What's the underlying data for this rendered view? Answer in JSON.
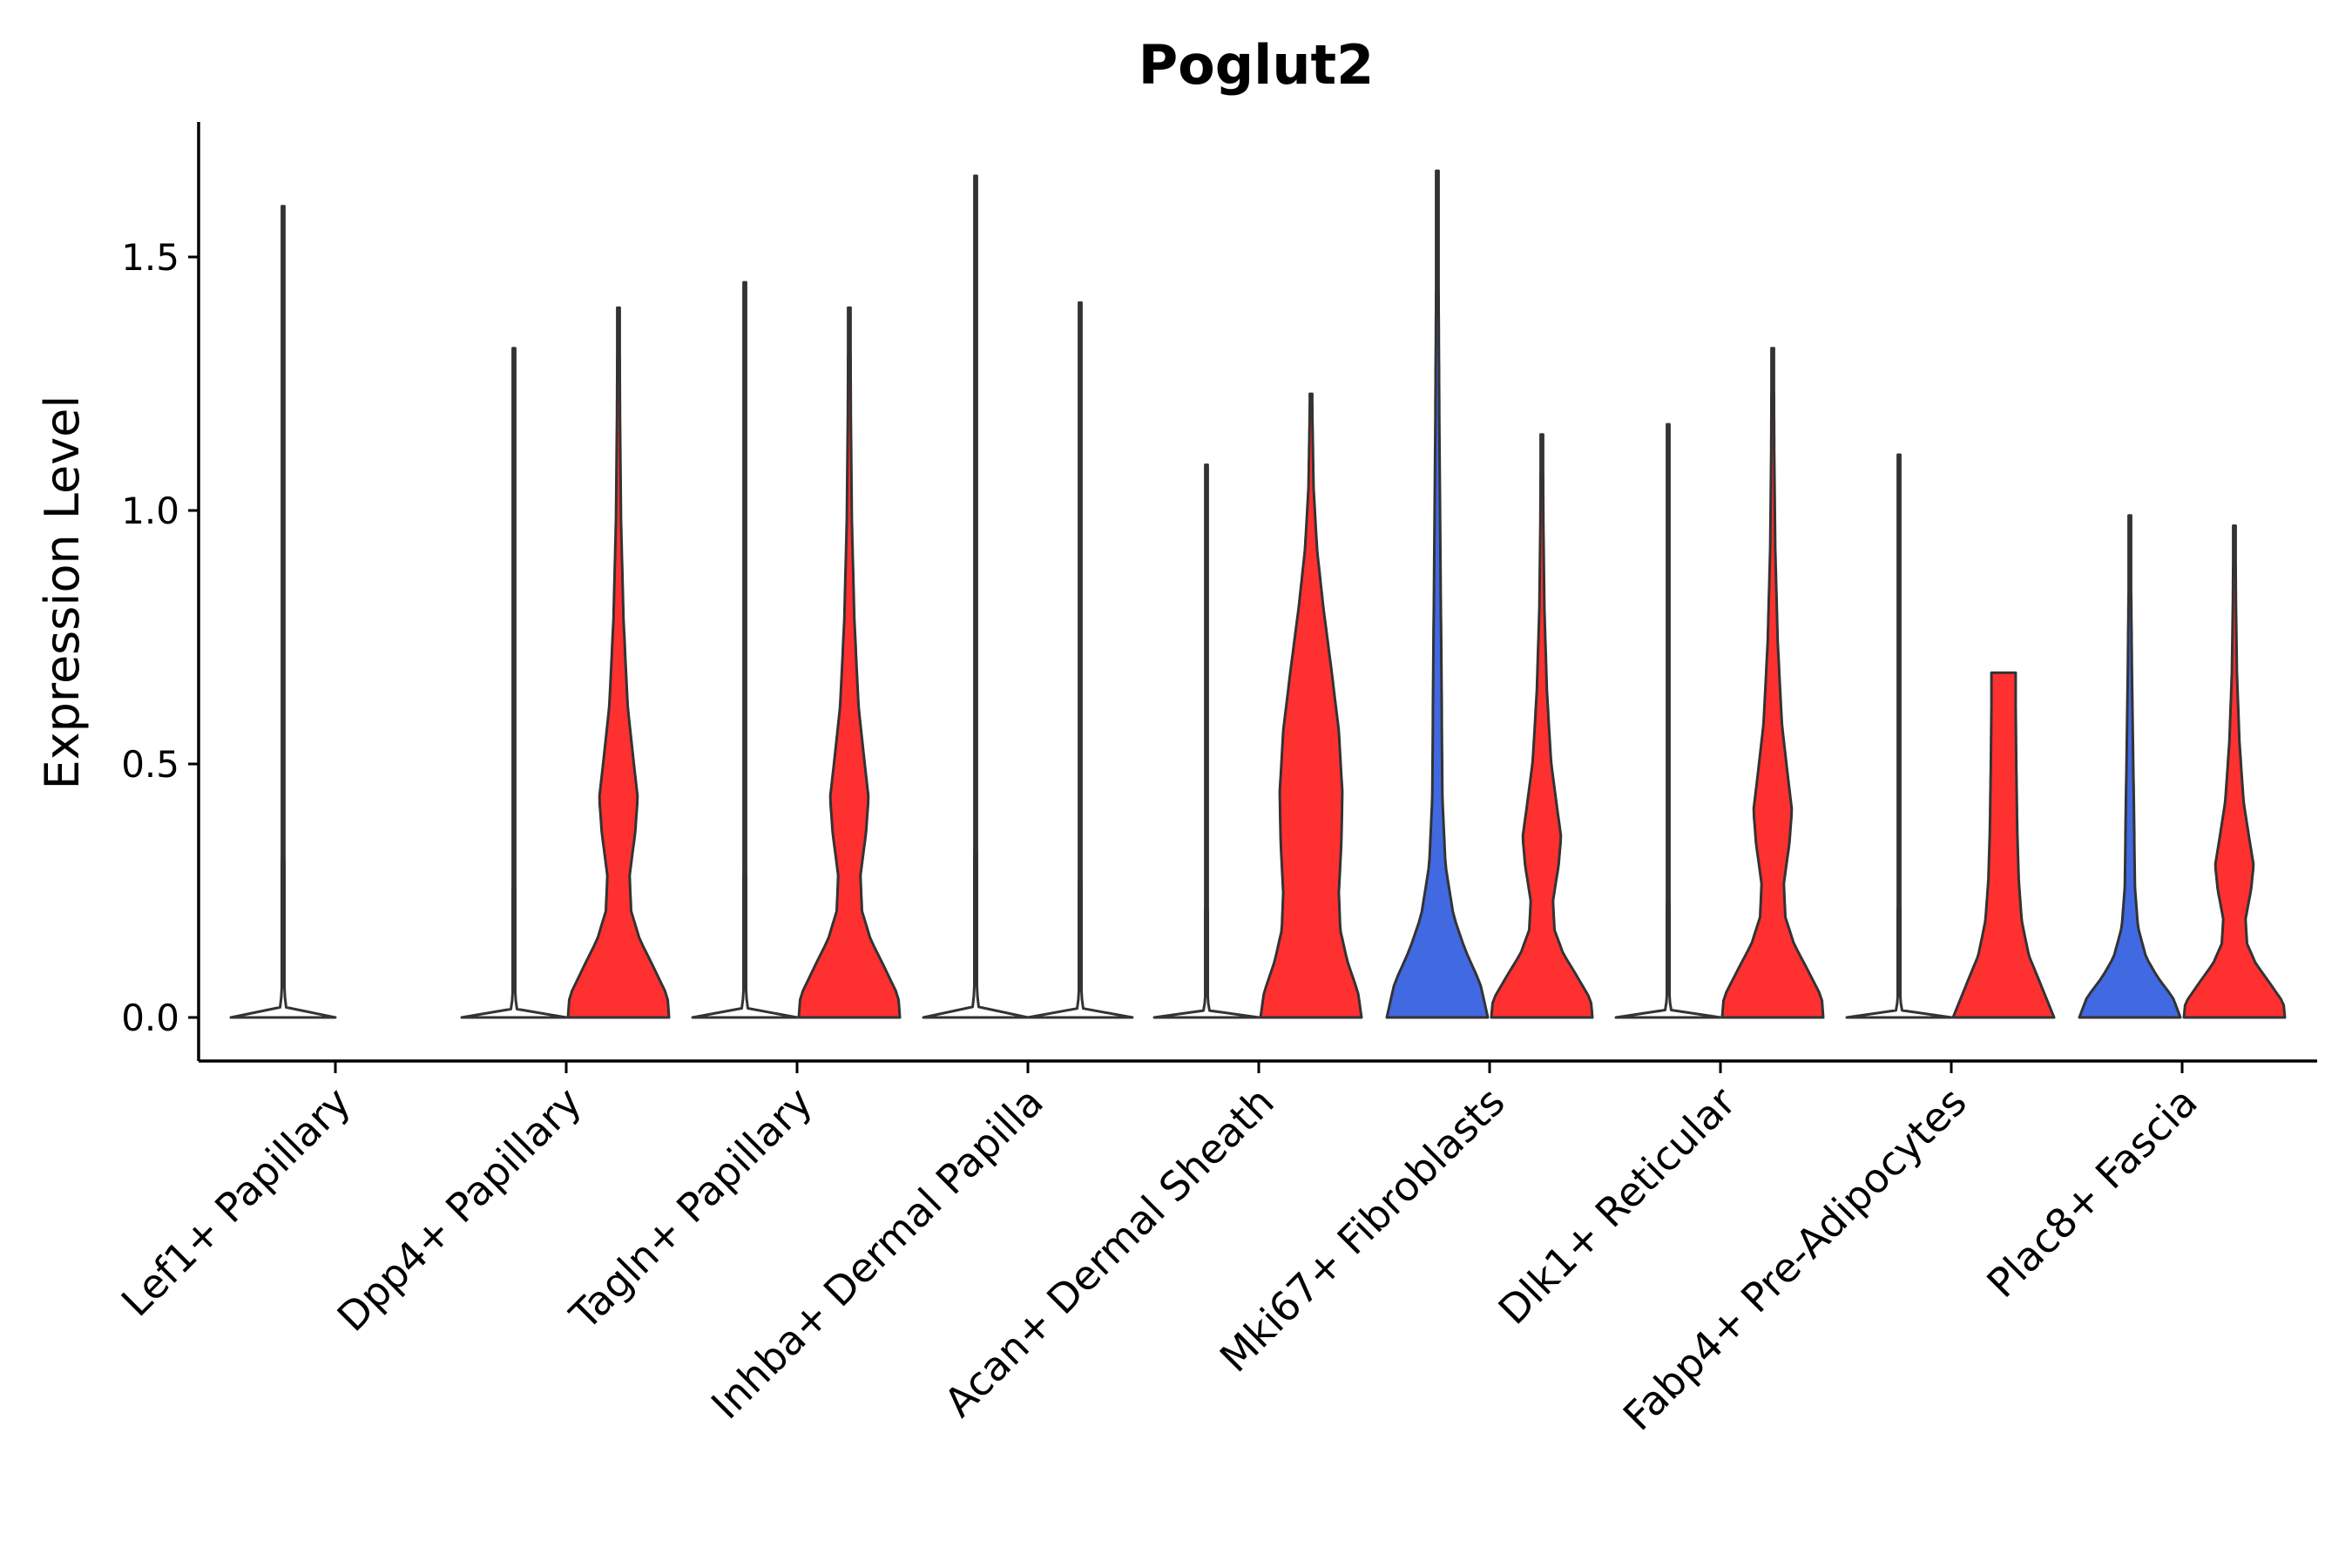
{
  "chart_data": {
    "type": "violin",
    "title": "Poglut2",
    "ylabel": "Expression Level",
    "xlabel": "",
    "ylim": [
      -0.08,
      1.76
    ],
    "yticks": [
      0.0,
      0.5,
      1.0,
      1.5
    ],
    "ytick_labels": [
      "0.0",
      "0.5",
      "1.0",
      "1.5"
    ],
    "colors": {
      "blue": "#4169E1",
      "red": "#FF3030",
      "none": "#ffffff"
    },
    "categories": [
      "Lef1+ Papillary",
      "Dpp4+ Papillary",
      "Tagln+ Papillary",
      "Inhba+ Dermal Papilla",
      "Acan+ Dermal Sheath",
      "Mki67+ Fibroblasts",
      "Dlk1+ Reticular",
      "Fabp4+ Pre-Adipocytes",
      "Plac8+ Fascia"
    ],
    "violins": [
      {
        "category": "Lef1+ Papillary",
        "side": "left",
        "color": "none",
        "max": 1.6,
        "profile": "flat"
      },
      {
        "category": "Dpp4+ Papillary",
        "side": "left",
        "color": "none",
        "max": 1.32,
        "profile": "flat"
      },
      {
        "category": "Dpp4+ Papillary",
        "side": "right",
        "color": "red",
        "max": 1.4,
        "profile": "bimodal"
      },
      {
        "category": "Tagln+ Papillary",
        "side": "left",
        "color": "none",
        "max": 1.45,
        "profile": "flat"
      },
      {
        "category": "Tagln+ Papillary",
        "side": "right",
        "color": "red",
        "max": 1.4,
        "profile": "bimodal"
      },
      {
        "category": "Inhba+ Dermal Papilla",
        "side": "left",
        "color": "none",
        "max": 1.66,
        "profile": "flat"
      },
      {
        "category": "Inhba+ Dermal Papilla",
        "side": "right",
        "color": "none",
        "max": 1.41,
        "profile": "flat"
      },
      {
        "category": "Acan+ Dermal Sheath",
        "side": "left",
        "color": "none",
        "max": 1.09,
        "profile": "flat"
      },
      {
        "category": "Acan+ Dermal Sheath",
        "side": "right",
        "color": "red",
        "max": 1.23,
        "profile": "broad"
      },
      {
        "category": "Mki67+ Fibroblasts",
        "side": "left",
        "color": "blue",
        "max": 1.67,
        "profile": "low"
      },
      {
        "category": "Mki67+ Fibroblasts",
        "side": "right",
        "color": "red",
        "max": 1.15,
        "profile": "bimodal"
      },
      {
        "category": "Dlk1+ Reticular",
        "side": "left",
        "color": "none",
        "max": 1.17,
        "profile": "flat"
      },
      {
        "category": "Dlk1+ Reticular",
        "side": "right",
        "color": "red",
        "max": 1.32,
        "profile": "bimodal"
      },
      {
        "category": "Fabp4+ Pre-Adipocytes",
        "side": "left",
        "color": "none",
        "max": 1.11,
        "profile": "flat"
      },
      {
        "category": "Fabp4+ Pre-Adipocytes",
        "side": "right",
        "color": "red",
        "max": 0.68,
        "profile": "truncated"
      },
      {
        "category": "Plac8+ Fascia",
        "side": "left",
        "color": "blue",
        "max": 0.99,
        "profile": "low"
      },
      {
        "category": "Plac8+ Fascia",
        "side": "right",
        "color": "red",
        "max": 0.97,
        "profile": "bimodal"
      }
    ]
  }
}
